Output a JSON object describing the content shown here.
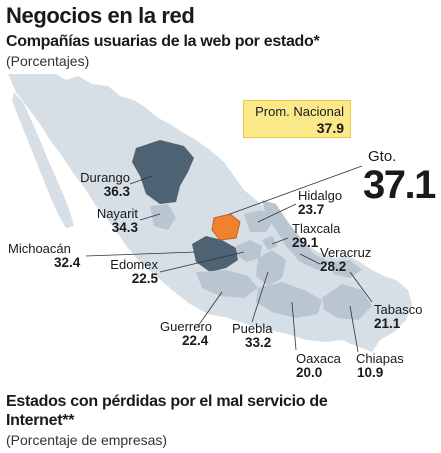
{
  "title": "Negocios en la red",
  "subtitle": "Compañías usuarias de la web por estado*",
  "unit": "(Porcentajes)",
  "national": {
    "label": "Prom. Nacional",
    "value": "37.9"
  },
  "highlight": {
    "name": "Gto.",
    "value": "37.1"
  },
  "states": [
    {
      "name": "Durango",
      "value": "36.3"
    },
    {
      "name": "Nayarit",
      "value": "34.3"
    },
    {
      "name": "Michoacán",
      "value": "32.4"
    },
    {
      "name": "Edomex",
      "value": "22.5"
    },
    {
      "name": "Hidalgo",
      "value": "23.7"
    },
    {
      "name": "Tlaxcala",
      "value": "29.1"
    },
    {
      "name": "Veracruz",
      "value": "28.2"
    },
    {
      "name": "Tabasco",
      "value": "21.1"
    },
    {
      "name": "Guerrero",
      "value": "22.4"
    },
    {
      "name": "Puebla",
      "value": "33.2"
    },
    {
      "name": "Oaxaca",
      "value": "20.0"
    },
    {
      "name": "Chiapas",
      "value": "10.9"
    }
  ],
  "footer": {
    "title": "Estados con pérdidas por el mal servicio de Internet**",
    "unit": "(Porcentaje de empresas)"
  },
  "colors": {
    "base": "#d6dee6",
    "light": "#b9c6d2",
    "dark": "#4d6273",
    "highlight": "#f0812f",
    "national_box": "#fbe889"
  }
}
